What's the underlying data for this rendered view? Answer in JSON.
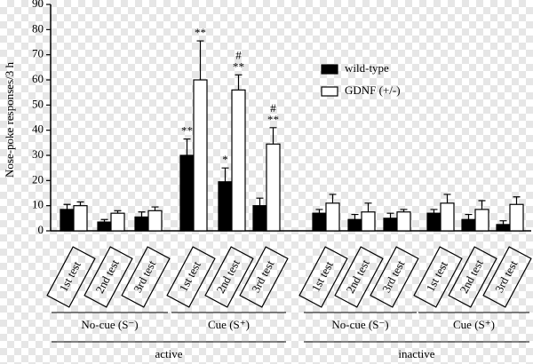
{
  "chart_data": {
    "type": "bar",
    "y_label": "Nose-poke responses/3 h",
    "categories": [
      "1st test",
      "2nd test",
      "3rd test",
      "1st test",
      "2nd test",
      "3rd test",
      "1st test",
      "2nd test",
      "3rd test",
      "1st test",
      "2nd test",
      "3rd test"
    ],
    "group_labels": [
      "No-cue (S⁻)",
      "Cue (S⁺)",
      "No-cue (S⁻)",
      "Cue (S⁺)"
    ],
    "super_group_labels": [
      "active",
      "inactive"
    ],
    "series": [
      {
        "name": "wild-type",
        "color": "#000000",
        "values": [
          8.5,
          3.5,
          5.5,
          30,
          19.5,
          10,
          7,
          4.5,
          5,
          7,
          4.5,
          2.5
        ],
        "errors": [
          2,
          1,
          2,
          6.5,
          5.5,
          3,
          1.5,
          2,
          2,
          1.5,
          2,
          1.5
        ],
        "annotations": [
          [],
          [],
          [],
          [
            "**"
          ],
          [
            "*"
          ],
          [],
          [],
          [],
          [],
          [],
          [],
          []
        ]
      },
      {
        "name": "GDNF (+/-)",
        "color": "#ffffff",
        "values": [
          10,
          7,
          8,
          60,
          56,
          34.5,
          11,
          7.5,
          7.5,
          11,
          8.5,
          10.5
        ],
        "errors": [
          1.5,
          1,
          1.5,
          15.5,
          6,
          6.5,
          3.5,
          3.5,
          1,
          3.5,
          3.5,
          3
        ],
        "annotations": [
          [],
          [],
          [],
          [
            "**"
          ],
          [
            "#",
            "**"
          ],
          [
            "#",
            "**"
          ],
          [],
          [],
          [],
          [],
          [],
          []
        ]
      }
    ],
    "ylim": [
      0,
      90
    ],
    "yticks": [
      0,
      10,
      20,
      30,
      40,
      50,
      60,
      70,
      80,
      90
    ]
  }
}
